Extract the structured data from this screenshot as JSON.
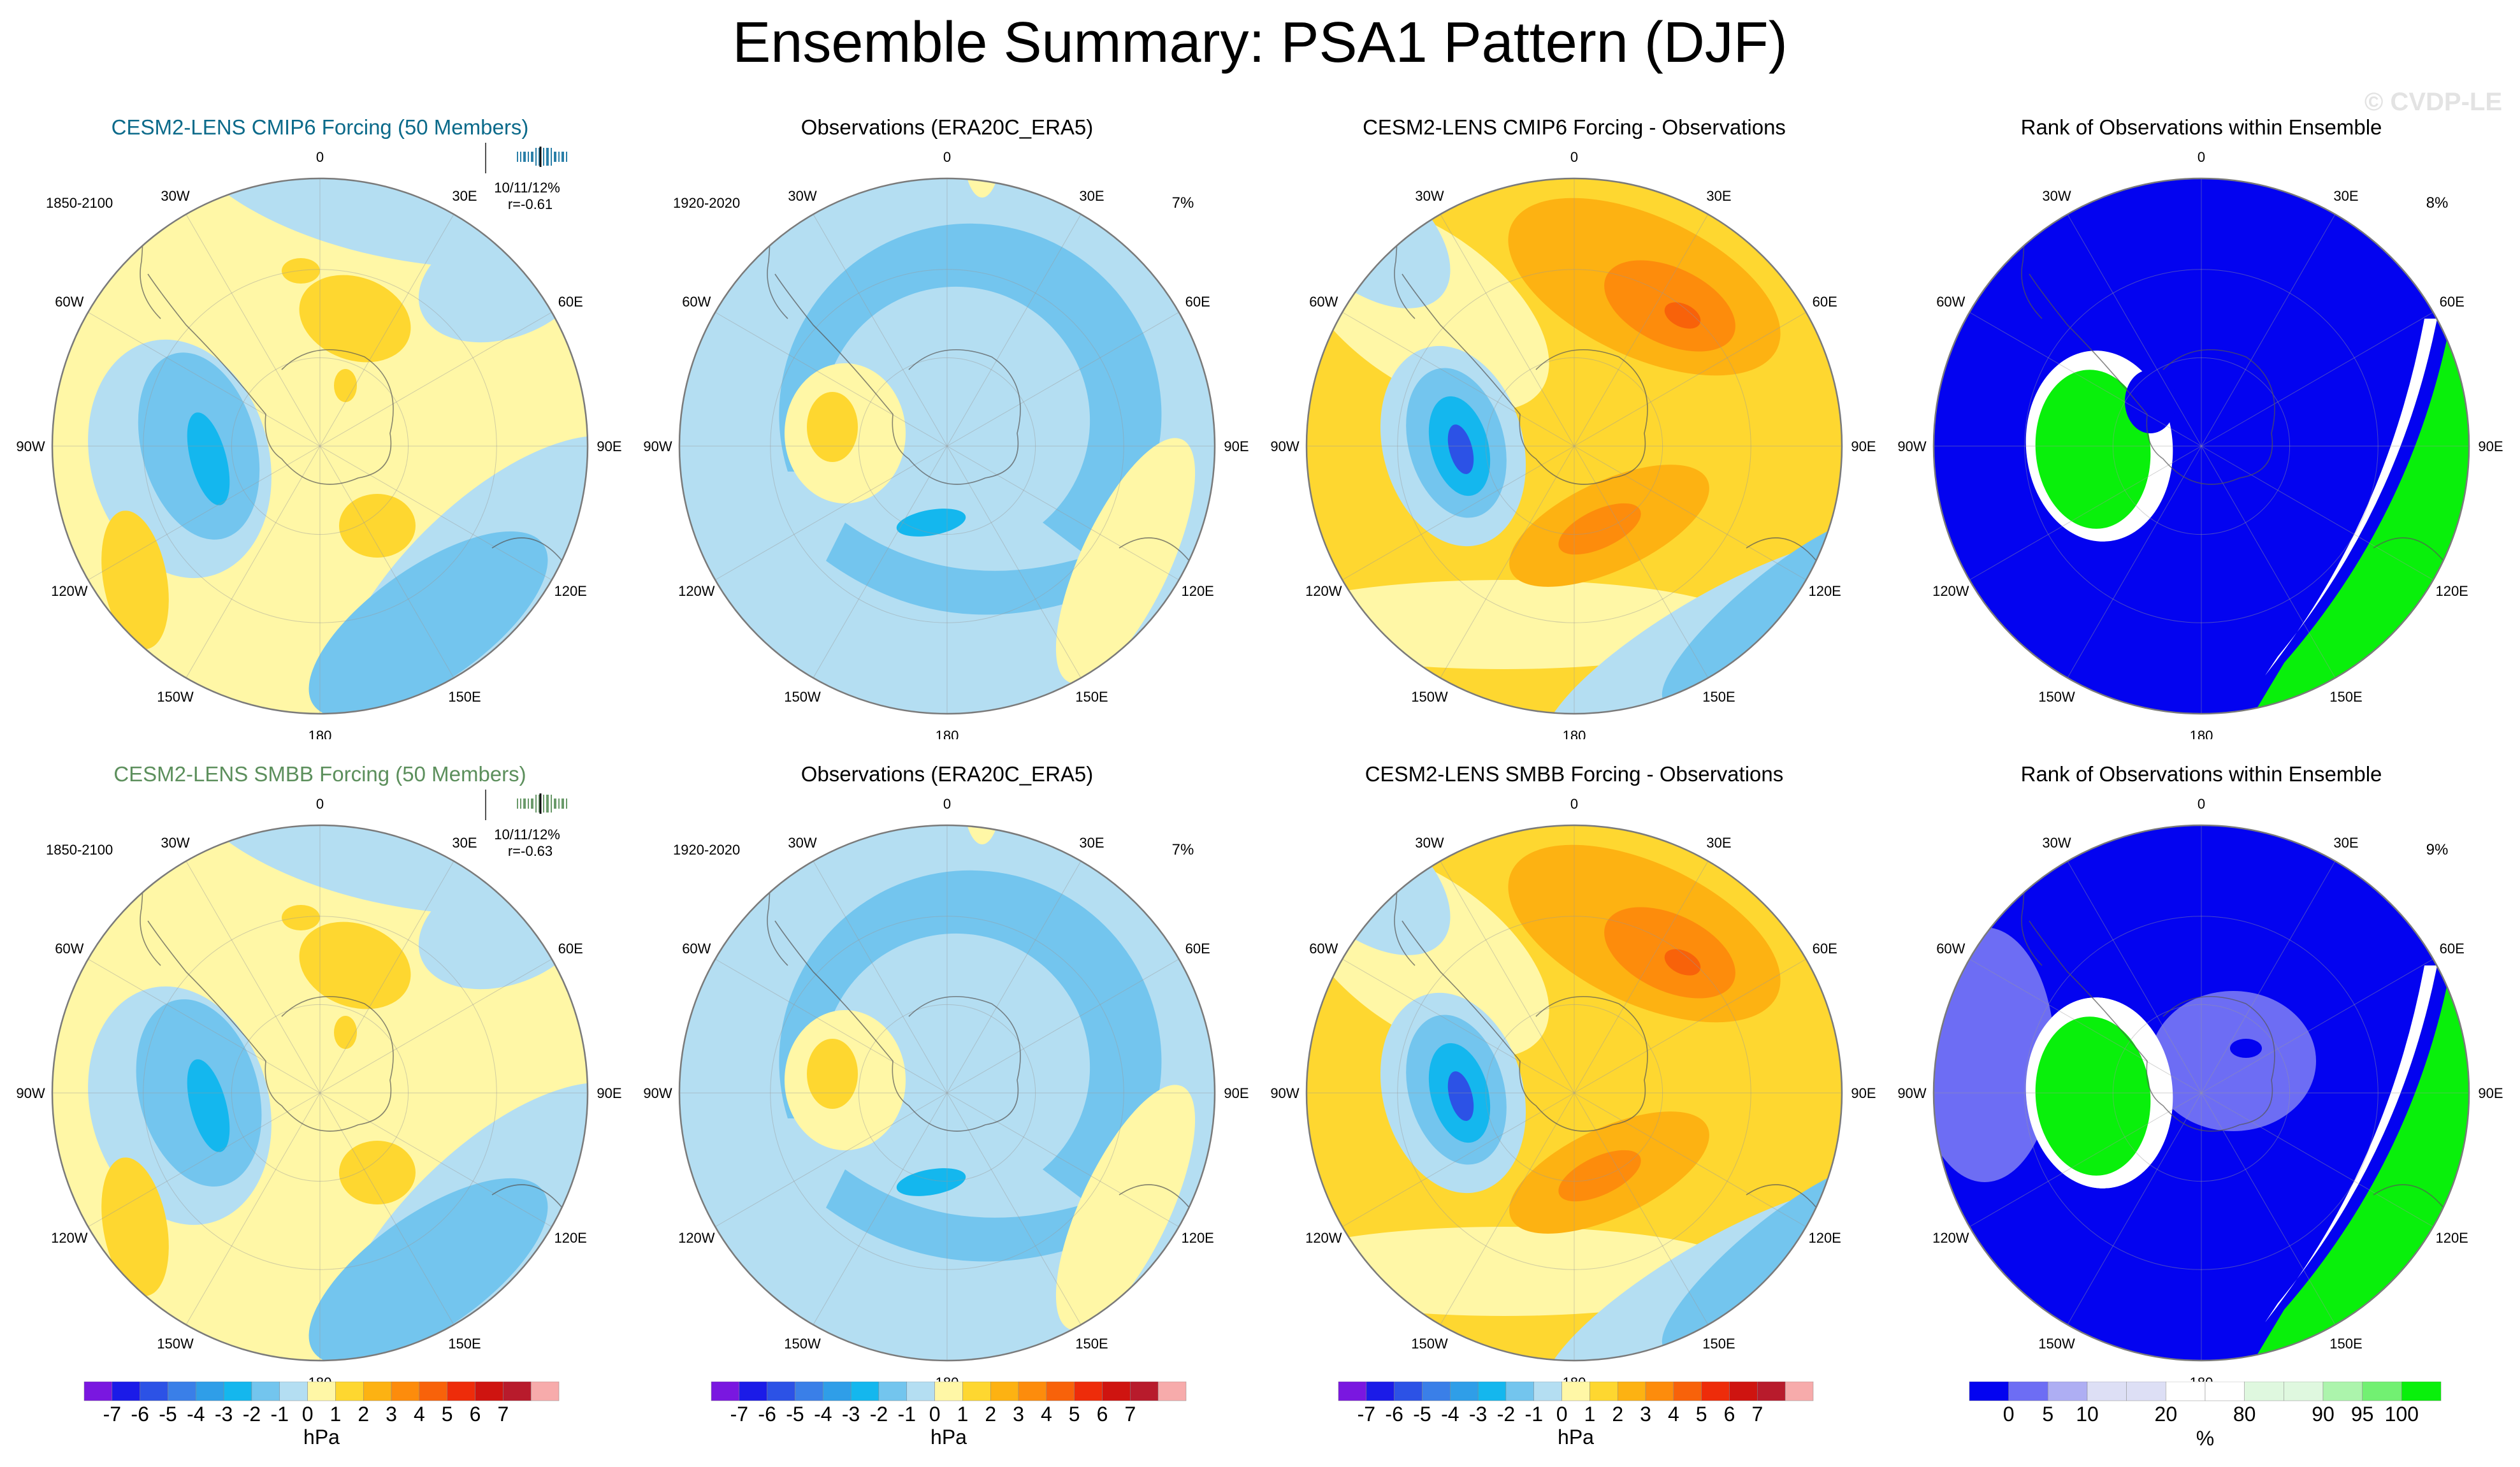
{
  "title": "Ensemble Summary: PSA1 Pattern (DJF)",
  "watermark": "© CVDP-LE",
  "longitude_labels": [
    "0",
    "30E",
    "60E",
    "90E",
    "120E",
    "150E",
    "180",
    "150W",
    "120W",
    "90W",
    "60W",
    "30W"
  ],
  "rows": [
    {
      "panels": [
        {
          "title": "CESM2-LENS CMIP6 Forcing (50 Members)",
          "title_color": "#0b6a8a",
          "type": "ensemble",
          "period": "1850-2100",
          "stats": "10/11/12%",
          "corr": "r=-0.61",
          "marker_color": "#2a7fa8",
          "variant": "A"
        },
        {
          "title": "Observations (ERA20C_ERA5)",
          "title_color": "#000000",
          "type": "obs",
          "period": "1920-2020",
          "pct": "7%",
          "variant": "A"
        },
        {
          "title": "CESM2-LENS CMIP6 Forcing - Observations",
          "title_color": "#000000",
          "type": "diff",
          "variant": "A"
        },
        {
          "title": "Rank of Observations within Ensemble",
          "title_color": "#000000",
          "type": "rank",
          "pct": "8%",
          "variant": "A"
        }
      ]
    },
    {
      "panels": [
        {
          "title": "CESM2-LENS SMBB Forcing (50 Members)",
          "title_color": "#5c8f5c",
          "type": "ensemble",
          "period": "1850-2100",
          "stats": "10/11/12%",
          "corr": "r=-0.63",
          "marker_color": "#6a9a6a",
          "variant": "B"
        },
        {
          "title": "Observations (ERA20C_ERA5)",
          "title_color": "#000000",
          "type": "obs",
          "period": "1920-2020",
          "pct": "7%",
          "variant": "B"
        },
        {
          "title": "CESM2-LENS SMBB Forcing - Observations",
          "title_color": "#000000",
          "type": "diff",
          "variant": "B"
        },
        {
          "title": "Rank of Observations within Ensemble",
          "title_color": "#000000",
          "type": "rank",
          "pct": "9%",
          "variant": "B"
        }
      ]
    }
  ],
  "colorbar_hpa": {
    "colors": [
      "#7a17e0",
      "#1b1be8",
      "#2c52e6",
      "#3a7fe8",
      "#2f9ee8",
      "#14b7ee",
      "#73c5ee",
      "#b4def2",
      "#fff7a6",
      "#fed730",
      "#fdb212",
      "#fd8c0c",
      "#f8620a",
      "#ee2c0a",
      "#cf1410",
      "#b81b2c",
      "#f7abab"
    ],
    "labels": [
      "-7",
      "-6",
      "-5",
      "-4",
      "-3",
      "-2",
      "-1",
      "0",
      "1",
      "2",
      "3",
      "4",
      "5",
      "6",
      "7"
    ],
    "unit": "hPa"
  },
  "colorbar_rank": {
    "colors": [
      "#0303f0",
      "#6d6df4",
      "#aeaef3",
      "#dddff5",
      "#dddff5",
      "#ffffff",
      "#ffffff",
      "#dff8df",
      "#dff8df",
      "#acf4ac",
      "#72f072",
      "#09f00b"
    ],
    "labels": [
      "0",
      "5",
      "10",
      "20",
      "80",
      "90",
      "95",
      "100"
    ],
    "unit": "%"
  }
}
